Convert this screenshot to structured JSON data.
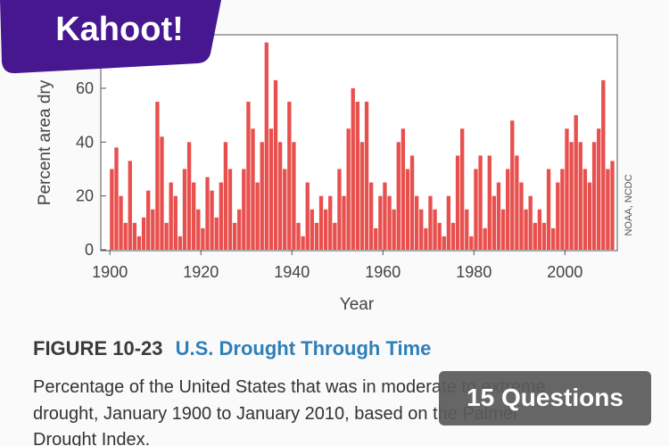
{
  "chart_data": {
    "type": "bar",
    "y_label": "Percent area dry",
    "x_label": "Year",
    "source": "NOAA, NCDC",
    "color": "#e8504e",
    "x": [
      1900,
      1901,
      1902,
      1903,
      1904,
      1905,
      1906,
      1907,
      1908,
      1909,
      1910,
      1911,
      1912,
      1913,
      1914,
      1915,
      1916,
      1917,
      1918,
      1919,
      1920,
      1921,
      1922,
      1923,
      1924,
      1925,
      1926,
      1927,
      1928,
      1929,
      1930,
      1931,
      1932,
      1933,
      1934,
      1935,
      1936,
      1937,
      1938,
      1939,
      1940,
      1941,
      1942,
      1943,
      1944,
      1945,
      1946,
      1947,
      1948,
      1949,
      1950,
      1951,
      1952,
      1953,
      1954,
      1955,
      1956,
      1957,
      1958,
      1959,
      1960,
      1961,
      1962,
      1963,
      1964,
      1965,
      1966,
      1967,
      1968,
      1969,
      1970,
      1971,
      1972,
      1973,
      1974,
      1975,
      1976,
      1977,
      1978,
      1979,
      1980,
      1981,
      1982,
      1983,
      1984,
      1985,
      1986,
      1987,
      1988,
      1989,
      1990,
      1991,
      1992,
      1993,
      1994,
      1995,
      1996,
      1997,
      1998,
      1999,
      2000,
      2001,
      2002,
      2003,
      2004,
      2005,
      2006,
      2007,
      2008,
      2009,
      2010
    ],
    "values": [
      30,
      38,
      20,
      10,
      33,
      10,
      5,
      12,
      22,
      15,
      55,
      42,
      10,
      25,
      20,
      5,
      30,
      40,
      25,
      15,
      8,
      27,
      22,
      12,
      25,
      40,
      30,
      10,
      15,
      30,
      55,
      45,
      25,
      40,
      77,
      45,
      63,
      40,
      30,
      55,
      40,
      10,
      5,
      25,
      15,
      10,
      20,
      15,
      20,
      10,
      30,
      20,
      45,
      60,
      55,
      40,
      55,
      25,
      8,
      20,
      25,
      20,
      15,
      40,
      45,
      30,
      35,
      20,
      15,
      8,
      20,
      15,
      10,
      5,
      20,
      10,
      35,
      45,
      15,
      5,
      30,
      35,
      8,
      35,
      20,
      25,
      15,
      30,
      48,
      35,
      25,
      15,
      20,
      10,
      15,
      10,
      30,
      8,
      25,
      30,
      45,
      40,
      50,
      40,
      30,
      25,
      40,
      45,
      63,
      30,
      33
    ],
    "xlim": [
      1898,
      2011.5
    ],
    "ylim": [
      0,
      80
    ],
    "xticks": [
      1900,
      1920,
      1940,
      1960,
      1980,
      2000
    ],
    "yticks": [
      0,
      20,
      40,
      60
    ]
  },
  "caption": {
    "figure": "FIGURE 10-23",
    "title": "U.S. Drought Through Time",
    "lines": [
      "Percentage of the United States that was in moderate to extreme",
      "drought, January 1900 to January 2010, based on the Palmer",
      "Drought Index."
    ]
  },
  "overlay": {
    "logo": "Kahoot!",
    "badge": "15 Questions"
  }
}
